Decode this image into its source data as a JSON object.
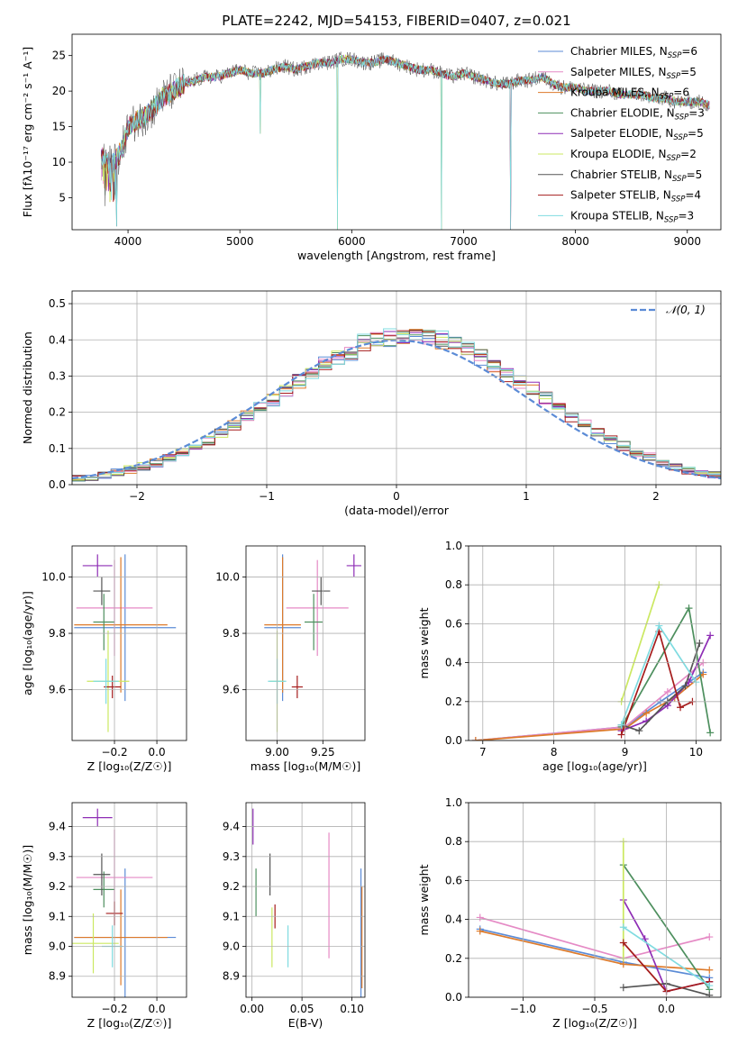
{
  "colors": {
    "chabrier_miles": "#5b8bd6",
    "salpeter_miles": "#e58ac5",
    "kroupa_miles": "#dd7a2a",
    "chabrier_elodie": "#4d8f5e",
    "salpeter_elodie": "#8e2db5",
    "kroupa_elodie": "#cbe861",
    "chabrier_stelib": "#555555",
    "salpeter_stelib": "#a51c1c",
    "kroupa_stelib": "#7fdbe0",
    "normal": "#5b8bd6"
  },
  "chart_data": [
    {
      "id": "spectrum",
      "type": "line",
      "title": "PLATE=2242, MJD=54153, FIBERID=0407, z=0.021",
      "xlabel": "wavelength [Angstrom, rest frame]",
      "ylabel": "Flux [fλ10⁻¹⁷ erg cm⁻² s⁻¹ A⁻¹]",
      "xlim": [
        3500,
        9300
      ],
      "ylim": [
        0.5,
        28
      ],
      "xticks": [
        "4000",
        "5000",
        "6000",
        "7000",
        "8000",
        "9000"
      ],
      "yticks": [
        "5",
        "10",
        "15",
        "20",
        "25"
      ],
      "grid": false,
      "legend_position": "top-right",
      "legend": [
        {
          "label": "Chabrier MILES, N",
          "sub": "SSP",
          "suffix": "=6",
          "color": "#5b8bd6"
        },
        {
          "label": "Salpeter MILES, N",
          "sub": "SSP",
          "suffix": "=5",
          "color": "#e58ac5"
        },
        {
          "label": "Kroupa MILES, N",
          "sub": "SSP",
          "suffix": "=6",
          "color": "#dd7a2a"
        },
        {
          "label": "Chabrier ELODIE, N",
          "sub": "SSP",
          "suffix": "=3",
          "color": "#4d8f5e"
        },
        {
          "label": "Salpeter ELODIE, N",
          "sub": "SSP",
          "suffix": "=5",
          "color": "#8e2db5"
        },
        {
          "label": "Kroupa ELODIE, N",
          "sub": "SSP",
          "suffix": "=2",
          "color": "#cbe861"
        },
        {
          "label": "Chabrier STELIB, N",
          "sub": "SSP",
          "suffix": "=5",
          "color": "#555555"
        },
        {
          "label": "Salpeter STELIB, N",
          "sub": "SSP",
          "suffix": "=4",
          "color": "#a51c1c"
        },
        {
          "label": "Kroupa STELIB, N",
          "sub": "SSP",
          "suffix": "=3",
          "color": "#7fdbe0"
        }
      ],
      "envelope_x": [
        3760,
        3800,
        3850,
        3900,
        3950,
        4000,
        4100,
        4200,
        4300,
        4400,
        4500,
        4600,
        4700,
        4800,
        4900,
        5000,
        5100,
        5200,
        5300,
        5400,
        5500,
        5600,
        5700,
        5800,
        5900,
        6000,
        6100,
        6200,
        6300,
        6400,
        6500,
        6600,
        6700,
        6800,
        6900,
        7000,
        7100,
        7200,
        7300,
        7400,
        7500,
        7600,
        7700,
        7800,
        7900,
        8000,
        8100,
        8200,
        8300,
        8400,
        8500,
        8600,
        8700,
        8800,
        8900,
        9000,
        9100,
        9200
      ],
      "envelope_y": [
        11,
        10,
        9.5,
        10.5,
        12,
        15,
        16,
        17,
        19,
        20,
        21,
        21.5,
        22,
        22,
        22.5,
        23,
        22.5,
        22.5,
        23,
        23.5,
        23,
        23.5,
        24,
        24,
        24.5,
        24.5,
        24,
        24,
        24.5,
        24,
        23.5,
        23,
        23,
        22.5,
        22,
        22.5,
        22,
        21.5,
        21,
        21,
        21.5,
        21.5,
        22,
        21,
        20.5,
        20.5,
        20,
        20,
        20,
        19.5,
        19.5,
        19.5,
        19,
        19,
        18.5,
        18.5,
        18.5,
        18
      ]
    },
    {
      "id": "residual_histogram",
      "type": "bar",
      "xlabel": "(data-model)/error",
      "ylabel": "Normed distribution",
      "xlim": [
        -2.5,
        2.5
      ],
      "ylim": [
        0,
        0.535
      ],
      "xticks": [
        "−2",
        "−1",
        "0",
        "1",
        "2"
      ],
      "yticks": [
        "0.0",
        "0.1",
        "0.2",
        "0.3",
        "0.4",
        "0.5"
      ],
      "grid": true,
      "legend_position": "top-right",
      "legend": [
        {
          "label": "𝒩(0, 1)",
          "color": "#5b8bd6",
          "style": "dashed"
        }
      ],
      "bin_width": 0.1,
      "bin_start": -2.5,
      "curve": "normal pdf, mean 0, sigma 1"
    },
    {
      "id": "age_vs_Z",
      "type": "scatter",
      "xlabel": "Z [log₁₀(Z/Z☉)]",
      "ylabel": "age  [log₁₀(age/yr)]",
      "xlim": [
        -0.4,
        0.14
      ],
      "ylim": [
        9.42,
        10.11
      ],
      "xticks": [
        "−0.2",
        "0.0"
      ],
      "yticks": [
        "9.6",
        "9.8",
        "10.0"
      ],
      "grid": true,
      "points": [
        {
          "x": -0.15,
          "y": 9.82,
          "xerr": 0.24,
          "yerr": 0.26,
          "color": "#5b8bd6"
        },
        {
          "x": -0.2,
          "y": 9.89,
          "xerr": 0.18,
          "yerr": 0.17,
          "color": "#e58ac5"
        },
        {
          "x": -0.17,
          "y": 9.83,
          "xerr": 0.22,
          "yerr": 0.24,
          "color": "#dd7a2a"
        },
        {
          "x": -0.25,
          "y": 9.84,
          "xerr": 0.05,
          "yerr": 0.1,
          "color": "#4d8f5e"
        },
        {
          "x": -0.28,
          "y": 10.04,
          "xerr": 0.07,
          "yerr": 0.04,
          "color": "#8e2db5"
        },
        {
          "x": -0.23,
          "y": 9.63,
          "xerr": 0.1,
          "yerr": 0.18,
          "color": "#cbe861"
        },
        {
          "x": -0.26,
          "y": 9.95,
          "xerr": 0.04,
          "yerr": 0.05,
          "color": "#555555"
        },
        {
          "x": -0.21,
          "y": 9.61,
          "xerr": 0.04,
          "yerr": 0.04,
          "color": "#a51c1c"
        },
        {
          "x": -0.24,
          "y": 9.63,
          "xerr": 0.06,
          "yerr": 0.08,
          "color": "#7fdbe0"
        }
      ]
    },
    {
      "id": "age_vs_mass",
      "type": "scatter",
      "xlabel": "mass [log₁₀(M/M☉)]",
      "ylabel": "",
      "xlim": [
        8.83,
        9.48
      ],
      "ylim": [
        9.42,
        10.11
      ],
      "xticks": [
        "9.00",
        "9.25"
      ],
      "yticks": [
        "9.6",
        "9.8",
        "10.0"
      ],
      "grid": true,
      "points": [
        {
          "x": 9.03,
          "y": 9.82,
          "xerr": 0.1,
          "yerr": 0.26,
          "color": "#5b8bd6"
        },
        {
          "x": 9.22,
          "y": 9.89,
          "xerr": 0.17,
          "yerr": 0.17,
          "color": "#e58ac5"
        },
        {
          "x": 9.03,
          "y": 9.83,
          "xerr": 0.1,
          "yerr": 0.24,
          "color": "#dd7a2a"
        },
        {
          "x": 9.2,
          "y": 9.84,
          "xerr": 0.05,
          "yerr": 0.1,
          "color": "#4d8f5e"
        },
        {
          "x": 9.42,
          "y": 10.04,
          "xerr": 0.04,
          "yerr": 0.04,
          "color": "#8e2db5"
        },
        {
          "x": 9.0,
          "y": 9.63,
          "xerr": 0.04,
          "yerr": 0.18,
          "color": "#cbe861"
        },
        {
          "x": 9.24,
          "y": 9.95,
          "xerr": 0.05,
          "yerr": 0.05,
          "color": "#555555"
        },
        {
          "x": 9.11,
          "y": 9.61,
          "xerr": 0.03,
          "yerr": 0.04,
          "color": "#a51c1c"
        },
        {
          "x": 9.0,
          "y": 9.63,
          "xerr": 0.05,
          "yerr": 0.08,
          "color": "#7fdbe0"
        }
      ]
    },
    {
      "id": "weight_vs_age",
      "type": "line",
      "xlabel": "age  [log₁₀(age/yr)]",
      "ylabel": "mass weight",
      "xlim": [
        6.8,
        10.35
      ],
      "ylim": [
        0,
        1
      ],
      "xticks": [
        "7",
        "8",
        "9",
        "10"
      ],
      "yticks": [
        "0.0",
        "0.2",
        "0.4",
        "0.6",
        "0.8",
        "1.0"
      ],
      "grid": true,
      "series": [
        {
          "color": "#5b8bd6",
          "x": [
            6.9,
            9.0,
            9.5,
            10.1
          ],
          "y": [
            0.0,
            0.07,
            0.2,
            0.35
          ]
        },
        {
          "color": "#e58ac5",
          "x": [
            6.9,
            9.0,
            9.6,
            10.1
          ],
          "y": [
            0.0,
            0.07,
            0.25,
            0.4
          ]
        },
        {
          "color": "#dd7a2a",
          "x": [
            6.9,
            9.0,
            9.3,
            9.7,
            10.1
          ],
          "y": [
            0.0,
            0.06,
            0.14,
            0.22,
            0.34
          ]
        },
        {
          "color": "#4d8f5e",
          "x": [
            8.95,
            9.9,
            10.2
          ],
          "y": [
            0.07,
            0.68,
            0.04
          ]
        },
        {
          "color": "#8e2db5",
          "x": [
            8.95,
            9.3,
            9.6,
            9.9,
            10.2
          ],
          "y": [
            0.05,
            0.1,
            0.18,
            0.3,
            0.54
          ]
        },
        {
          "color": "#cbe861",
          "x": [
            8.95,
            9.48
          ],
          "y": [
            0.2,
            0.8
          ]
        },
        {
          "color": "#555555",
          "x": [
            8.95,
            9.2,
            9.6,
            9.85,
            10.05
          ],
          "y": [
            0.08,
            0.05,
            0.2,
            0.28,
            0.5
          ]
        },
        {
          "color": "#a51c1c",
          "x": [
            8.95,
            9.48,
            9.78,
            9.95
          ],
          "y": [
            0.03,
            0.56,
            0.17,
            0.2
          ]
        },
        {
          "color": "#7fdbe0",
          "x": [
            8.95,
            9.48,
            10.0
          ],
          "y": [
            0.08,
            0.59,
            0.3
          ]
        }
      ]
    },
    {
      "id": "mass_vs_Z",
      "type": "scatter",
      "xlabel": "Z [log₁₀(Z/Z☉)]",
      "ylabel": "mass [log₁₀(M/M☉)]",
      "xlim": [
        -0.4,
        0.14
      ],
      "ylim": [
        8.83,
        9.48
      ],
      "xticks": [
        "−0.2",
        "0.0"
      ],
      "yticks": [
        "8.9",
        "9.0",
        "9.1",
        "9.2",
        "9.3",
        "9.4"
      ],
      "grid": true,
      "points": [
        {
          "x": -0.15,
          "y": 9.03,
          "xerr": 0.24,
          "yerr": 0.23,
          "color": "#5b8bd6"
        },
        {
          "x": -0.2,
          "y": 9.23,
          "xerr": 0.18,
          "yerr": 0.16,
          "color": "#e58ac5"
        },
        {
          "x": -0.17,
          "y": 9.03,
          "xerr": 0.22,
          "yerr": 0.16,
          "color": "#dd7a2a"
        },
        {
          "x": -0.25,
          "y": 9.19,
          "xerr": 0.05,
          "yerr": 0.06,
          "color": "#4d8f5e"
        },
        {
          "x": -0.28,
          "y": 9.43,
          "xerr": 0.07,
          "yerr": 0.03,
          "color": "#8e2db5"
        },
        {
          "x": -0.3,
          "y": 9.01,
          "xerr": 0.12,
          "yerr": 0.1,
          "color": "#cbe861"
        },
        {
          "x": -0.26,
          "y": 9.24,
          "xerr": 0.04,
          "yerr": 0.07,
          "color": "#555555"
        },
        {
          "x": -0.2,
          "y": 9.11,
          "xerr": 0.04,
          "yerr": 0.04,
          "color": "#a51c1c"
        },
        {
          "x": -0.21,
          "y": 9.0,
          "xerr": 0.05,
          "yerr": 0.07,
          "color": "#7fdbe0"
        }
      ]
    },
    {
      "id": "mass_vs_ebv",
      "type": "scatter",
      "xlabel": "E(B-V)",
      "ylabel": "",
      "xlim": [
        -0.006,
        0.113
      ],
      "ylim": [
        8.83,
        9.48
      ],
      "xticks": [
        "0.00",
        "0.05",
        "0.10"
      ],
      "yticks": [
        "8.9",
        "9.0",
        "9.1",
        "9.2",
        "9.3",
        "9.4"
      ],
      "grid": true,
      "points": [
        {
          "x": 0.109,
          "y": 9.03,
          "xerr": 0,
          "yerr": 0.23,
          "color": "#5b8bd6"
        },
        {
          "x": 0.077,
          "y": 9.17,
          "xerr": 0,
          "yerr": 0.21,
          "color": "#e58ac5"
        },
        {
          "x": 0.11,
          "y": 9.03,
          "xerr": 0,
          "yerr": 0.17,
          "color": "#dd7a2a"
        },
        {
          "x": 0.004,
          "y": 9.18,
          "xerr": 0,
          "yerr": 0.08,
          "color": "#4d8f5e"
        },
        {
          "x": 0.001,
          "y": 9.4,
          "xerr": 0,
          "yerr": 0.06,
          "color": "#8e2db5"
        },
        {
          "x": 0.02,
          "y": 9.03,
          "xerr": 0,
          "yerr": 0.1,
          "color": "#cbe861"
        },
        {
          "x": 0.018,
          "y": 9.24,
          "xerr": 0,
          "yerr": 0.07,
          "color": "#555555"
        },
        {
          "x": 0.023,
          "y": 9.1,
          "xerr": 0,
          "yerr": 0.04,
          "color": "#a51c1c"
        },
        {
          "x": 0.036,
          "y": 9.0,
          "xerr": 0,
          "yerr": 0.07,
          "color": "#7fdbe0"
        }
      ]
    },
    {
      "id": "weight_vs_Z",
      "type": "line",
      "xlabel": "Z [log₁₀(Z/Z☉)]",
      "ylabel": "mass weight",
      "xlim": [
        -1.38,
        0.38
      ],
      "ylim": [
        0,
        1
      ],
      "xticks": [
        "−1.0",
        "−0.5",
        "0.0"
      ],
      "yticks": [
        "0.0",
        "0.2",
        "0.4",
        "0.6",
        "0.8",
        "1.0"
      ],
      "grid": true,
      "series": [
        {
          "color": "#5b8bd6",
          "x": [
            -1.3,
            -0.3,
            0.3
          ],
          "y": [
            0.35,
            0.18,
            0.1
          ]
        },
        {
          "color": "#e58ac5",
          "x": [
            -1.3,
            -0.3,
            0.3
          ],
          "y": [
            0.41,
            0.2,
            0.31
          ]
        },
        {
          "color": "#dd7a2a",
          "x": [
            -1.3,
            -0.3,
            0.3
          ],
          "y": [
            0.34,
            0.17,
            0.14
          ]
        },
        {
          "color": "#4d8f5e",
          "x": [
            -0.3,
            0.3
          ],
          "y": [
            0.68,
            0.04
          ]
        },
        {
          "color": "#8e2db5",
          "x": [
            -0.3,
            -0.15,
            0.0,
            0.3
          ],
          "y": [
            0.5,
            0.3,
            0.03,
            0.08
          ]
        },
        {
          "color": "#cbe861",
          "x": [
            -0.3,
            -0.3
          ],
          "y": [
            0.2,
            0.8
          ]
        },
        {
          "color": "#555555",
          "x": [
            -0.3,
            0.0,
            0.3
          ],
          "y": [
            0.05,
            0.07,
            0.01
          ]
        },
        {
          "color": "#a51c1c",
          "x": [
            -0.3,
            0.0,
            0.3
          ],
          "y": [
            0.28,
            0.03,
            0.08
          ]
        },
        {
          "color": "#7fdbe0",
          "x": [
            -0.3,
            0.3
          ],
          "y": [
            0.36,
            0.06
          ]
        }
      ]
    }
  ]
}
